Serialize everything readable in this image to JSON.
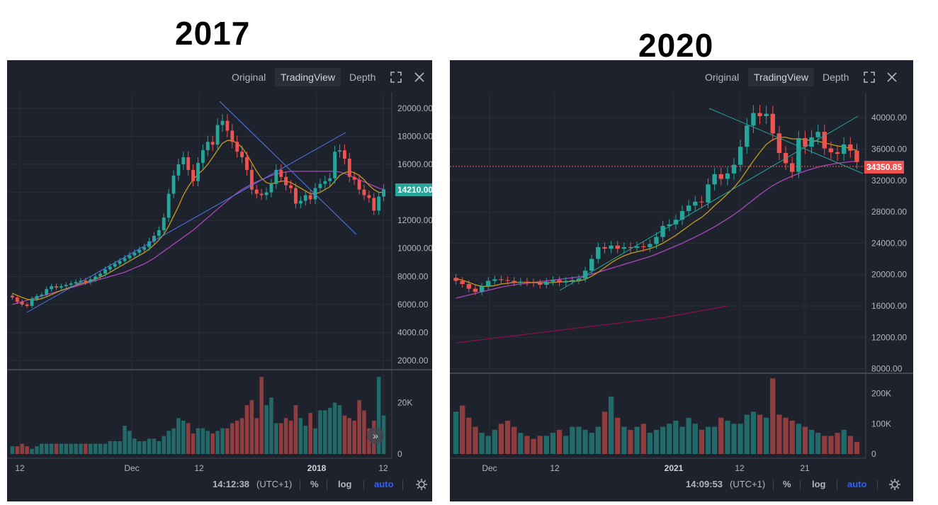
{
  "titles": {
    "left": "2017",
    "right": "2020"
  },
  "panels": [
    {
      "tabs": [
        "Original",
        "TradingView",
        "Depth"
      ],
      "active_tab": "TradingView",
      "price_label": "14210.00",
      "price_color": "#26a69a",
      "bottom": {
        "time": "14:12:38",
        "tz": "(UTC+1)",
        "pct": "%",
        "log": "log",
        "auto": "auto"
      },
      "y_ticks": [
        "20000.00",
        "18000.00",
        "16000.00",
        "14000.00",
        "12000.00",
        "10000.00",
        "8000.00",
        "6000.00",
        "4000.00",
        "2000.00"
      ],
      "vol_ticks": [
        "20K",
        "0"
      ],
      "x_ticks": [
        "12",
        "Dec",
        "12",
        "2018",
        "12"
      ]
    },
    {
      "tabs": [
        "Original",
        "TradingView",
        "Depth"
      ],
      "active_tab": "TradingView",
      "price_label": "34350.85",
      "price_color": "#ef5350",
      "bottom": {
        "time": "14:09:53",
        "tz": "(UTC+1)",
        "pct": "%",
        "log": "log",
        "auto": "auto"
      },
      "y_ticks": [
        "40000.00",
        "36000.00",
        "32000.00",
        "28000.00",
        "24000.00",
        "20000.00",
        "16000.00",
        "12000.00",
        "8000.00"
      ],
      "vol_ticks": [
        "200K",
        "100K",
        "0"
      ],
      "x_ticks": [
        "Dec",
        "12",
        "2021",
        "12",
        "21"
      ]
    }
  ],
  "chart_data": [
    {
      "type": "candlestick",
      "title": "2017",
      "ylim": [
        1500,
        21000
      ],
      "x_ticks": [
        "12",
        "Dec",
        "12",
        "2018",
        "12"
      ],
      "close": [
        6500,
        6200,
        6000,
        5900,
        6400,
        6600,
        6700,
        7100,
        7300,
        7200,
        7300,
        7400,
        7500,
        7600,
        7700,
        7600,
        7800,
        8000,
        8200,
        8500,
        8700,
        8900,
        9100,
        9300,
        9500,
        9700,
        9900,
        10100,
        10500,
        10900,
        11300,
        12200,
        13900,
        15200,
        16000,
        16500,
        15600,
        14800,
        16100,
        17000,
        17600,
        17400,
        18800,
        19100,
        18400,
        17600,
        16900,
        16500,
        15600,
        14200,
        13900,
        13800,
        14000,
        14600,
        15600,
        15100,
        14500,
        14300,
        13200,
        13400,
        13800,
        13500,
        14300,
        14600,
        14800,
        15000,
        16900,
        17000,
        16400,
        15100,
        14900,
        14200,
        13800,
        13600,
        12700,
        13700,
        14210
      ],
      "ma_short": [
        6800,
        6650,
        6500,
        6380,
        6320,
        6340,
        6420,
        6550,
        6700,
        6860,
        7000,
        7120,
        7250,
        7380,
        7500,
        7580,
        7680,
        7800,
        7950,
        8100,
        8300,
        8500,
        8700,
        8900,
        9100,
        9300,
        9500,
        9700,
        9950,
        10250,
        10600,
        11000,
        11600,
        12300,
        13000,
        13800,
        14400,
        14900,
        15300,
        15600,
        16000,
        16500,
        17000,
        17500,
        17700,
        17700,
        17500,
        17200,
        16700,
        16100,
        15500,
        15000,
        14700,
        14600,
        14700,
        14800,
        14800,
        14700,
        14500,
        14300,
        14100,
        13900,
        13900,
        14000,
        14200,
        14400,
        14800,
        15200,
        15400,
        15500,
        15400,
        15200,
        14900,
        14500,
        14200,
        14000,
        14000
      ],
      "ma_long": [
        6000,
        6100,
        6200,
        6300,
        6400,
        6500,
        6600,
        6700,
        6800,
        6900,
        7000,
        7100,
        7200,
        7300,
        7400,
        7500,
        7600,
        7700,
        7800,
        7900,
        8000,
        8100,
        8200,
        8300,
        8450,
        8600,
        8750,
        8900,
        9100,
        9300,
        9550,
        9800,
        10050,
        10300,
        10550,
        10800,
        11050,
        11300,
        11600,
        11900,
        12200,
        12500,
        12800,
        13100,
        13400,
        13700,
        13950,
        14200,
        14400,
        14600,
        14750,
        14900,
        15050,
        15200,
        15300,
        15400,
        15450,
        15500,
        15500,
        15500,
        15500,
        15500,
        15500,
        15500,
        15500,
        15500,
        15500,
        15450,
        15350,
        15200,
        15050,
        14900,
        14750,
        14600,
        14450,
        14300,
        14200
      ],
      "volume": [
        3,
        3,
        4,
        3,
        2,
        3,
        4,
        4,
        4,
        4,
        4,
        4,
        4,
        4,
        4,
        4,
        4,
        4,
        4,
        4,
        5,
        5,
        5,
        11,
        9,
        6,
        5,
        5,
        6,
        6,
        5,
        7,
        9,
        10,
        14,
        13,
        12,
        8,
        10,
        10,
        9,
        8,
        9,
        10,
        10,
        12,
        13,
        14,
        19,
        21,
        14,
        30,
        19,
        22,
        12,
        12,
        14,
        13,
        19,
        14,
        11,
        16,
        10,
        17,
        17,
        18,
        20,
        19,
        15,
        14,
        13,
        21,
        17,
        10,
        13,
        30,
        15
      ]
    },
    {
      "type": "candlestick",
      "title": "2020",
      "ylim": [
        7600,
        43000
      ],
      "x_ticks": [
        "Dec",
        "12",
        "2021",
        "12",
        "21"
      ],
      "close": [
        19200,
        18800,
        18200,
        17800,
        18500,
        19200,
        19400,
        19300,
        19200,
        19000,
        19100,
        19000,
        18900,
        18700,
        19100,
        19300,
        19000,
        19200,
        19300,
        19500,
        20500,
        22000,
        23500,
        23300,
        23700,
        23300,
        23500,
        23400,
        23600,
        23500,
        23900,
        24800,
        26200,
        26400,
        27000,
        28100,
        28800,
        29300,
        29200,
        31500,
        32800,
        32200,
        32900,
        34000,
        36300,
        39000,
        40600,
        40200,
        40500,
        38000,
        35500,
        34200,
        33100,
        37400,
        36300,
        37500,
        38200,
        36100,
        35600,
        35400,
        36600,
        35800,
        34350
      ],
      "ma_short": [
        19500,
        19300,
        19000,
        18700,
        18500,
        18500,
        18600,
        18800,
        18900,
        19000,
        19000,
        19000,
        19000,
        18950,
        18950,
        19000,
        19050,
        19100,
        19150,
        19200,
        19400,
        19800,
        20300,
        20900,
        21500,
        22000,
        22400,
        22700,
        22900,
        23100,
        23300,
        23600,
        24000,
        24500,
        25000,
        25600,
        26200,
        26800,
        27300,
        28000,
        28800,
        29500,
        30300,
        31100,
        32100,
        33300,
        34500,
        35600,
        36600,
        37200,
        37500,
        37500,
        37300,
        37300,
        37200,
        37100,
        37000,
        36800,
        36600,
        36400,
        36300,
        36100,
        35800
      ],
      "ma_long": [
        17000,
        17200,
        17400,
        17600,
        17800,
        18000,
        18200,
        18400,
        18550,
        18700,
        18800,
        18900,
        19000,
        19100,
        19200,
        19300,
        19400,
        19500,
        19600,
        19700,
        19850,
        20050,
        20300,
        20550,
        20800,
        21050,
        21300,
        21550,
        21800,
        22050,
        22300,
        22600,
        22950,
        23300,
        23650,
        24000,
        24400,
        24800,
        25200,
        25650,
        26100,
        26600,
        27100,
        27650,
        28250,
        28900,
        29550,
        30200,
        30800,
        31350,
        31800,
        32200,
        32550,
        32900,
        33200,
        33450,
        33700,
        33900,
        34050,
        34200,
        34300,
        34400,
        34450
      ],
      "ma_200": [
        11300,
        11400,
        11500,
        11600,
        11700,
        11800,
        11900,
        12000,
        12100,
        12200,
        12300,
        12400,
        12500,
        12600,
        12700,
        12800,
        12900,
        13000,
        13100,
        13200,
        13300,
        13400,
        13500,
        13600,
        13700,
        13800,
        13900,
        14000,
        14100,
        14200,
        14300,
        14400,
        14500,
        14650,
        14800,
        14950,
        15100,
        15250,
        15400,
        15550,
        15700,
        15850,
        16000
      ],
      "volume": [
        140,
        160,
        120,
        90,
        70,
        60,
        80,
        100,
        110,
        90,
        70,
        60,
        50,
        60,
        60,
        70,
        80,
        60,
        90,
        90,
        80,
        70,
        90,
        140,
        190,
        120,
        90,
        80,
        90,
        100,
        70,
        80,
        90,
        100,
        110,
        90,
        120,
        100,
        80,
        90,
        90,
        120,
        110,
        100,
        100,
        130,
        140,
        130,
        120,
        250,
        130,
        120,
        110,
        100,
        90,
        80,
        70,
        60,
        60,
        70,
        80,
        60,
        40
      ]
    }
  ]
}
